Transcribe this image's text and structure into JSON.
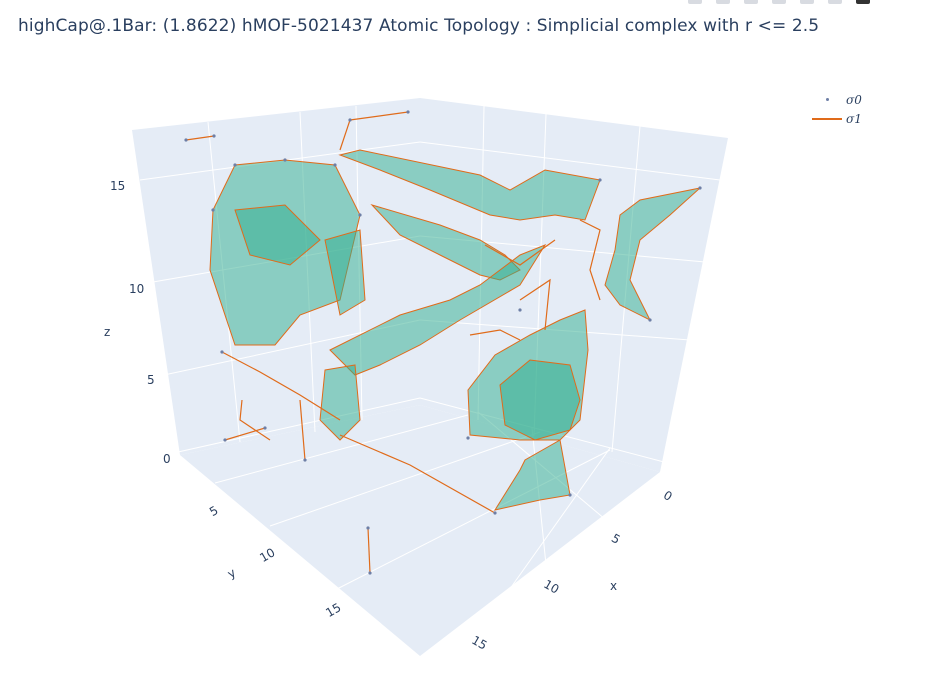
{
  "title": "highCap@.1Bar: (1.8622) hMOF-5021437 Atomic Topology : Simplicial complex with r <= 2.5",
  "legend": {
    "items": [
      {
        "label": "σ0",
        "kind": "marker"
      },
      {
        "label": "σ1",
        "kind": "line"
      }
    ]
  },
  "colors": {
    "background": "#ffffff",
    "scene_pane": "#e5ecf6",
    "grid": "#ffffff",
    "edge": "#e06b1a",
    "node": "#6e7fa6",
    "face": "#2fae8e",
    "text": "#2a3f5f"
  },
  "chart_data": {
    "type": "scatter3d-mesh",
    "x_axis": {
      "label": "x",
      "ticks": [
        "0",
        "5",
        "10",
        "15"
      ],
      "range": [
        -1,
        18
      ]
    },
    "y_axis": {
      "label": "y",
      "ticks": [
        "5",
        "10",
        "15"
      ],
      "range": [
        1,
        18
      ]
    },
    "z_axis": {
      "label": "z",
      "ticks": [
        "0",
        "5",
        "10",
        "15"
      ],
      "range": [
        -1,
        17
      ]
    },
    "grid": true,
    "legend_position": "top-right",
    "series": [
      {
        "name": "σ0",
        "mode": "markers"
      },
      {
        "name": "σ1",
        "mode": "lines"
      }
    ]
  }
}
